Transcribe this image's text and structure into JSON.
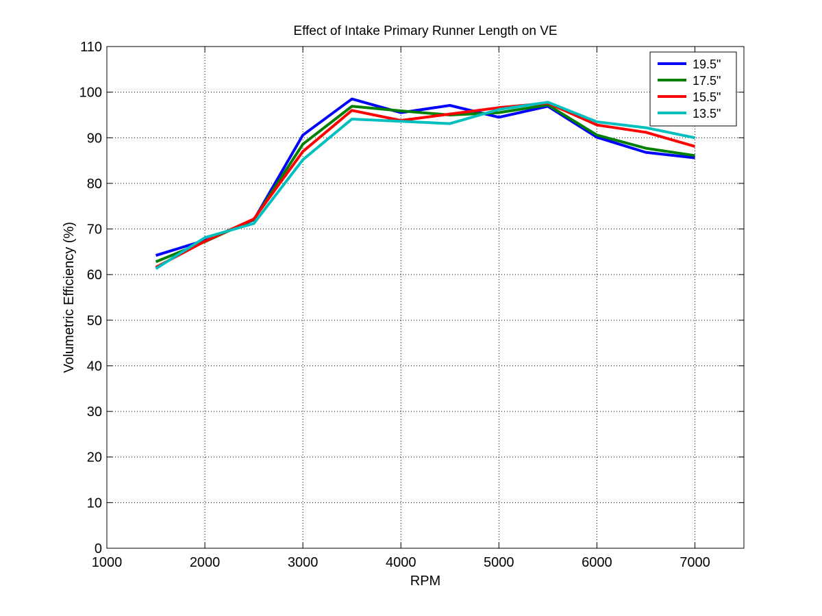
{
  "chart_data": {
    "type": "line",
    "title": "Effect of Intake Primary Runner Length on VE",
    "xlabel": "RPM",
    "ylabel": "Volumetric Efficiency (%)",
    "xlim": [
      1000,
      7500
    ],
    "ylim": [
      0,
      110
    ],
    "xticks": [
      1000,
      2000,
      3000,
      4000,
      5000,
      6000,
      7000
    ],
    "yticks": [
      0,
      10,
      20,
      30,
      40,
      50,
      60,
      70,
      80,
      90,
      100,
      110
    ],
    "grid": true,
    "legend_position": "top-right",
    "x": [
      1500,
      2000,
      2500,
      3000,
      3500,
      4000,
      4500,
      5000,
      5500,
      6000,
      6500,
      7000
    ],
    "series": [
      {
        "name": "19.5\"",
        "color": "#0000ff",
        "values": [
          64.2,
          67.5,
          72.0,
          90.6,
          98.5,
          95.5,
          97.1,
          94.5,
          96.9,
          90.1,
          86.8,
          85.6
        ]
      },
      {
        "name": "17.5\"",
        "color": "#007f00",
        "values": [
          62.8,
          67.2,
          72.1,
          88.6,
          96.9,
          95.9,
          95.0,
          95.5,
          97.2,
          90.6,
          87.7,
          86.1
        ]
      },
      {
        "name": "15.5\"",
        "color": "#ff0000",
        "values": [
          61.6,
          67.3,
          72.2,
          87.0,
          96.0,
          93.8,
          95.2,
          96.6,
          97.6,
          92.8,
          91.2,
          88.1
        ]
      },
      {
        "name": "13.5\"",
        "color": "#00bfbf",
        "values": [
          61.3,
          68.1,
          71.2,
          85.2,
          94.1,
          93.6,
          93.1,
          96.2,
          97.8,
          93.5,
          92.2,
          90.0
        ]
      }
    ]
  }
}
